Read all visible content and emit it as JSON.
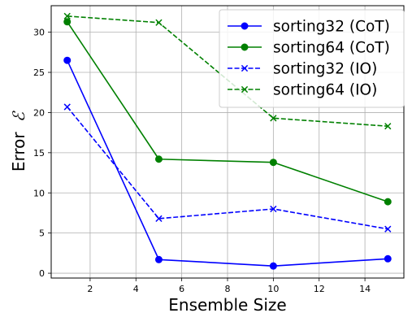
{
  "chart_data": {
    "type": "line",
    "xlabel": "Ensemble Size",
    "ylabel_text": "Error",
    "ylabel_symbol": "ℰ",
    "xlim": [
      0.3,
      15.7
    ],
    "ylim": [
      -0.6,
      33.3
    ],
    "xticks": [
      2,
      4,
      6,
      8,
      10,
      12,
      14
    ],
    "yticks": [
      0,
      5,
      10,
      15,
      20,
      25,
      30
    ],
    "grid": true,
    "legend_position": "top-right",
    "x": [
      1,
      5,
      10,
      15
    ],
    "series": [
      {
        "name": "sorting32 (CoT)",
        "values": [
          26.5,
          1.7,
          0.9,
          1.8
        ],
        "color": "#0000ff",
        "linestyle": "solid",
        "marker": "circle"
      },
      {
        "name": "sorting64 (CoT)",
        "values": [
          31.3,
          14.2,
          13.8,
          8.9
        ],
        "color": "#008000",
        "linestyle": "solid",
        "marker": "circle"
      },
      {
        "name": "sorting32 (IO)",
        "values": [
          20.7,
          6.8,
          8.0,
          5.5
        ],
        "color": "#0000ff",
        "linestyle": "dashed",
        "marker": "x"
      },
      {
        "name": "sorting64 (IO)",
        "values": [
          32.0,
          31.2,
          19.3,
          18.3
        ],
        "color": "#008000",
        "linestyle": "dashed",
        "marker": "x"
      }
    ]
  }
}
